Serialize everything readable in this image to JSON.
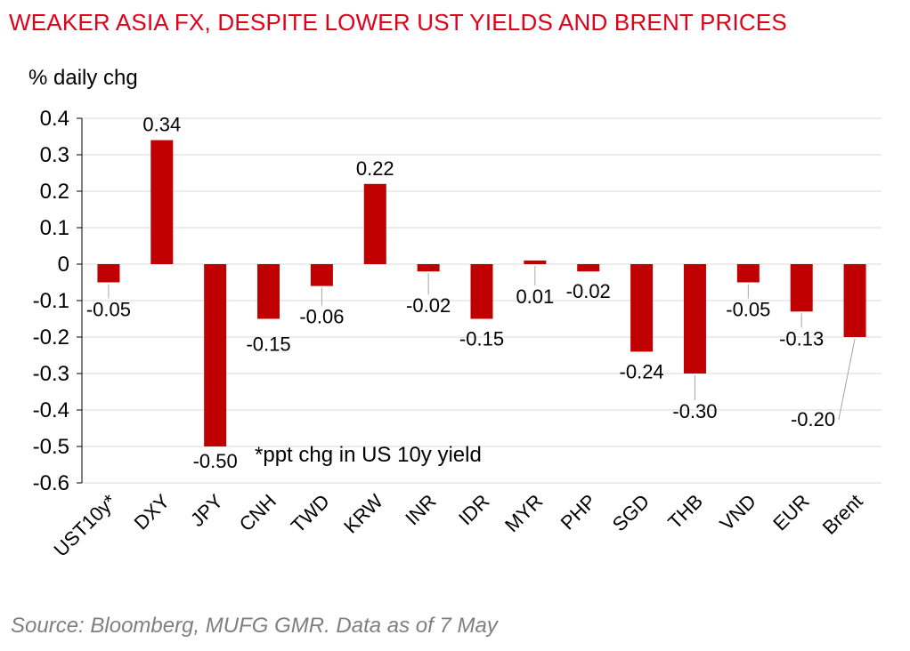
{
  "title": "WEAKER ASIA FX, DESPITE LOWER UST YIELDS AND BRENT PRICES",
  "source": "Source: Bloomberg, MUFG GMR.  Data as of 7 May",
  "colors": {
    "title": "#e0001b",
    "bar": "#c00000",
    "grid": "#d9d9d9",
    "source": "#7f7f7f"
  },
  "chart_data": {
    "type": "bar",
    "ylabel": "% daily chg",
    "ylim": [
      -0.6,
      0.4
    ],
    "yticks": [
      "0.4",
      "0.3",
      "0.2",
      "0.1",
      "0",
      "-0.1",
      "-0.2",
      "-0.3",
      "-0.4",
      "-0.5",
      "-0.6"
    ],
    "grid": true,
    "categories": [
      "UST10y*",
      "DXY",
      "JPY",
      "CNH",
      "TWD",
      "KRW",
      "INR",
      "IDR",
      "MYR",
      "PHP",
      "SGD",
      "THB",
      "VND",
      "EUR",
      "Brent"
    ],
    "values": [
      -0.05,
      0.34,
      -0.5,
      -0.15,
      -0.06,
      0.22,
      -0.02,
      -0.15,
      0.01,
      -0.02,
      -0.24,
      -0.3,
      -0.05,
      -0.13,
      -0.2
    ],
    "labels": [
      "-0.05",
      "0.34",
      "-0.50",
      "-0.15",
      "-0.06",
      "0.22",
      "-0.02",
      "-0.15",
      "0.01",
      "-0.02",
      "-0.24",
      "-0.30",
      "-0.05",
      "-0.13",
      "-0.20"
    ],
    "annotation": "*ppt chg in US 10y yield"
  }
}
